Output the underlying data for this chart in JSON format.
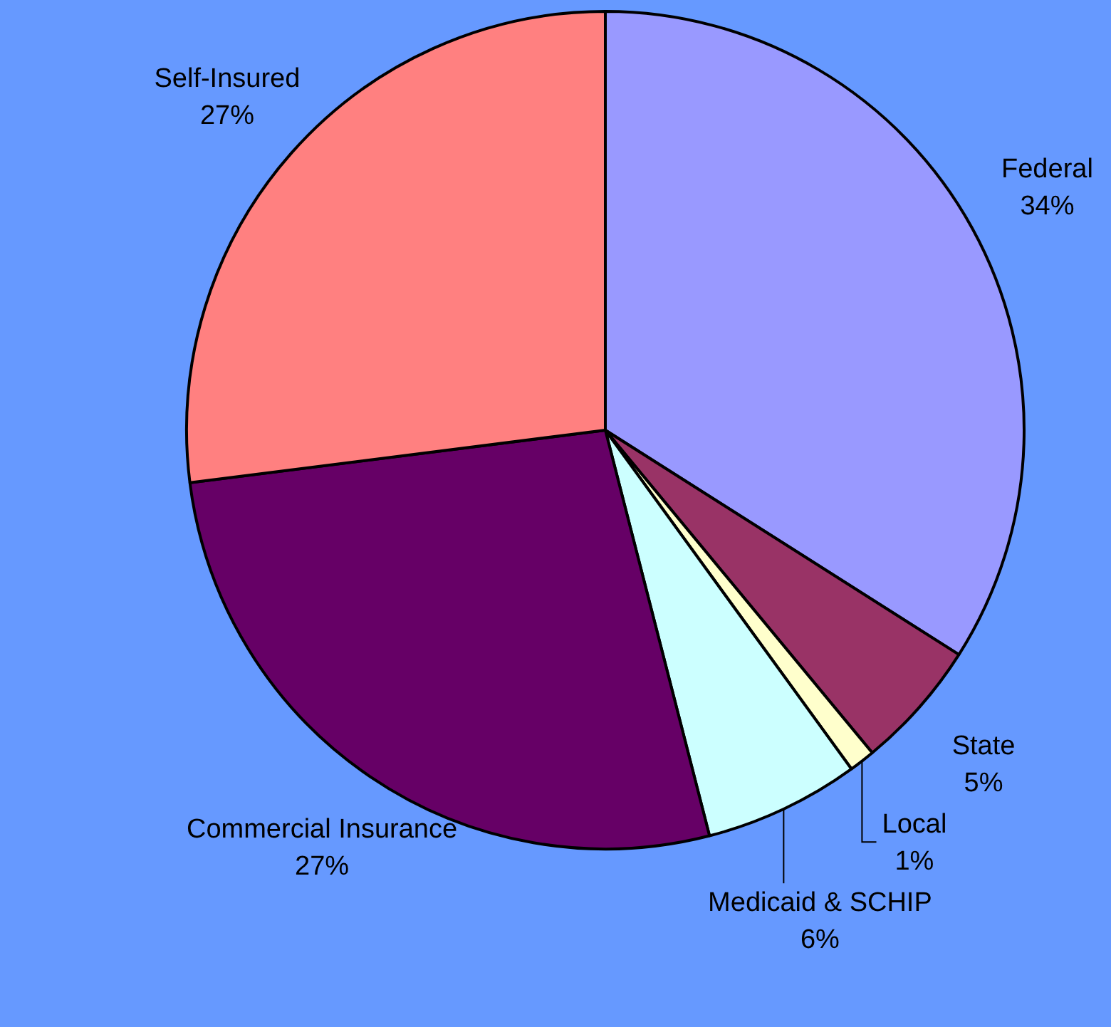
{
  "chart_data": {
    "type": "pie",
    "categories": [
      "Federal",
      "State",
      "Local",
      "Medicaid & SCHIP",
      "Commercial Insurance",
      "Self-Insured"
    ],
    "values": [
      34,
      5,
      1,
      6,
      27,
      27
    ],
    "colors": [
      "#9999ff",
      "#993366",
      "#ffffcc",
      "#ccffff",
      "#660066",
      "#ff8080"
    ],
    "value_labels": [
      "34%",
      "5%",
      "1%",
      "6%",
      "27%",
      "27%"
    ],
    "legend": false
  }
}
